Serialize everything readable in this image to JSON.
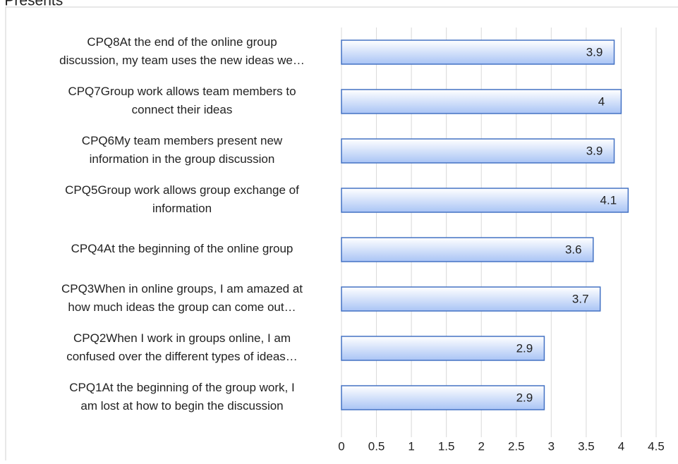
{
  "chart_data": {
    "type": "bar",
    "orientation": "horizontal",
    "title": "s Presents",
    "categories": [
      "CPQ8At the end of the online group\ndiscussion, my team uses the new ideas we…",
      "CPQ7Group work allows team members to\nconnect their ideas",
      "CPQ6My team members present new\ninformation in the group discussion",
      "CPQ5Group work allows group exchange of\ninformation",
      "CPQ4At the beginning of the online group",
      "CPQ3When in online groups, I am amazed at\nhow much ideas the group can come out…",
      "CPQ2When I work in groups online, I am\nconfused over the different types of ideas…",
      "CPQ1At the beginning of the group work, I\nam lost at how to begin the discussion"
    ],
    "values": [
      3.9,
      4,
      3.9,
      4.1,
      3.6,
      3.7,
      2.9,
      2.9
    ],
    "color": "#a9c4f5",
    "edge_color": "#4472c4",
    "xlim": [
      0,
      4.5
    ],
    "xticks": [
      0,
      0.5,
      1,
      1.5,
      2,
      2.5,
      3,
      3.5,
      4,
      4.5
    ],
    "grid": true
  }
}
